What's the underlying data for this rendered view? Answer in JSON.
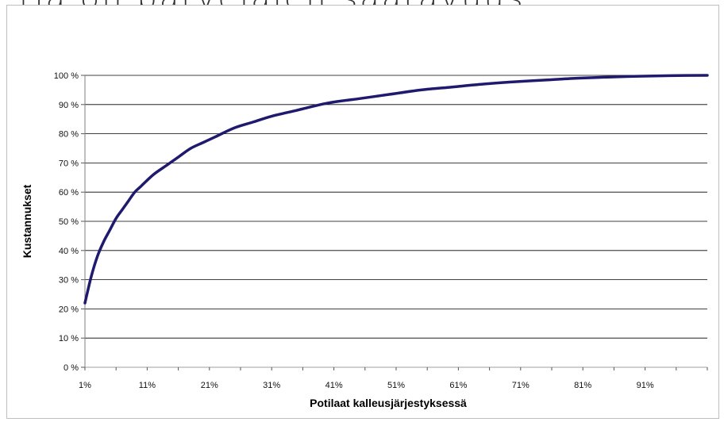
{
  "page": {
    "heading": "rja on parvelajen saatavuus"
  },
  "chart_data": {
    "type": "line",
    "title": "",
    "xlabel": "Potilaat kalleusjärjestyksessä",
    "ylabel": "Kustannukset",
    "xlim": [
      1,
      101
    ],
    "ylim": [
      0,
      100
    ],
    "x_ticks": [
      1,
      11,
      21,
      31,
      41,
      51,
      61,
      71,
      81,
      91
    ],
    "x_tick_labels": [
      "1%",
      "11%",
      "21%",
      "31%",
      "41%",
      "51%",
      "61%",
      "71%",
      "81%",
      "91%"
    ],
    "y_ticks": [
      0,
      10,
      20,
      30,
      40,
      50,
      60,
      70,
      80,
      90,
      100
    ],
    "y_tick_labels": [
      "0 %",
      "10 %",
      "20 %",
      "30 %",
      "40 %",
      "50 %",
      "60 %",
      "70 %",
      "80 %",
      "90 %",
      "100 %"
    ],
    "grid": "horizontal",
    "line_color": "#1f1a6e",
    "series": [
      {
        "x": [
          1,
          2,
          3,
          4,
          5,
          6,
          7,
          8,
          9,
          10,
          12,
          14,
          16,
          18,
          20,
          22,
          25,
          28,
          31,
          35,
          40,
          45,
          50,
          55,
          60,
          65,
          70,
          75,
          80,
          85,
          90,
          95,
          101
        ],
        "values": [
          22,
          31,
          38,
          43,
          47,
          51,
          54,
          57,
          60,
          62,
          66,
          69,
          72,
          75,
          77,
          79,
          82,
          84,
          86,
          88,
          90.5,
          92,
          93.5,
          95,
          96,
          97,
          97.8,
          98.4,
          99,
          99.4,
          99.7,
          99.9,
          100
        ]
      }
    ]
  }
}
